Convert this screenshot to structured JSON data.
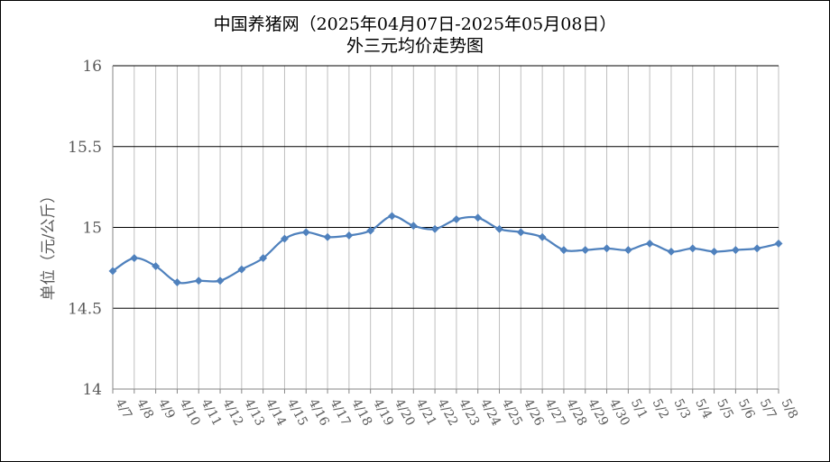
{
  "chart_data": {
    "type": "line",
    "title": "中国养猪网（2025年04月07日-2025年05月08日）",
    "subtitle": "外三元均价走势图",
    "ylabel": "单位（元/公斤）",
    "xlabel": "",
    "ylim": [
      14,
      16
    ],
    "yticks": [
      14,
      14.5,
      15,
      15.5,
      16
    ],
    "ytick_labels": [
      "14",
      "14.5",
      "15",
      "15.5",
      "16"
    ],
    "grid": true,
    "legend": "none",
    "categories": [
      "4/7",
      "4/8",
      "4/9",
      "4/10",
      "4/11",
      "4/12",
      "4/13",
      "4/14",
      "4/15",
      "4/16",
      "4/17",
      "4/18",
      "4/19",
      "4/20",
      "4/21",
      "4/22",
      "4/23",
      "4/24",
      "4/25",
      "4/26",
      "4/27",
      "4/28",
      "4/29",
      "4/30",
      "5/1",
      "5/2",
      "5/3",
      "5/4",
      "5/5",
      "5/6",
      "5/7",
      "5/8"
    ],
    "values": [
      14.73,
      14.81,
      14.76,
      14.66,
      14.67,
      14.67,
      14.74,
      14.81,
      14.93,
      14.97,
      14.94,
      14.95,
      14.98,
      15.07,
      15.01,
      14.99,
      15.05,
      15.06,
      14.99,
      14.97,
      14.94,
      14.86,
      14.86,
      14.87,
      14.86,
      14.9,
      14.85,
      14.87,
      14.85,
      14.86,
      14.87,
      14.9
    ],
    "line_color": "#4f81bd"
  }
}
